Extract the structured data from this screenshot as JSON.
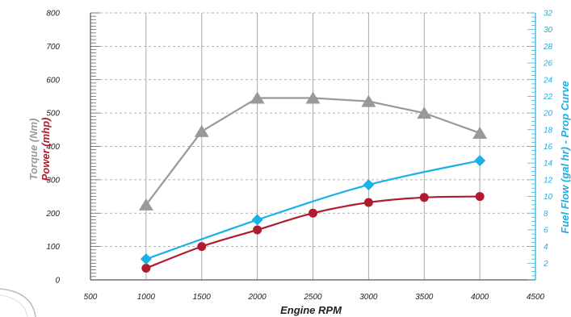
{
  "chart_data": {
    "type": "line",
    "title": "",
    "xlabel": "Engine RPM",
    "ylabel_left": [
      "Torque (Nm)",
      "Power (mhp)"
    ],
    "ylabel_right": "Fuel Flow (gal hr) - Prop Curve",
    "xlim": [
      500,
      4500
    ],
    "ylim_left": [
      0,
      800
    ],
    "ylim_right": [
      0,
      32
    ],
    "x_ticks": [
      500,
      1000,
      1500,
      2000,
      2500,
      3000,
      3500,
      4000,
      4500
    ],
    "y_left_ticks": [
      0,
      100,
      200,
      300,
      400,
      500,
      600,
      700,
      800
    ],
    "y_right_ticks": [
      2,
      4,
      6,
      8,
      10,
      12,
      14,
      16,
      18,
      20,
      22,
      24,
      26,
      28,
      30,
      32
    ],
    "grid": true,
    "series": [
      {
        "name": "Torque (Nm)",
        "axis": "left",
        "color": "#999999",
        "marker": "triangle",
        "x": [
          1000,
          1500,
          2000,
          2500,
          3000,
          3500,
          4000
        ],
        "values": [
          225,
          445,
          545,
          545,
          535,
          500,
          440
        ]
      },
      {
        "name": "Power (mhp)",
        "axis": "left",
        "color": "#b01c2e",
        "marker": "circle",
        "x": [
          1000,
          1500,
          2000,
          2500,
          3000,
          3500,
          4000
        ],
        "values": [
          35,
          100,
          150,
          200,
          232,
          247,
          250
        ]
      },
      {
        "name": "Fuel Flow (gal hr) - Prop Curve",
        "axis": "right",
        "color": "#1ab0e8",
        "marker": "diamond",
        "x": [
          1000,
          2000,
          3000,
          4000
        ],
        "values": [
          2.5,
          7.2,
          11.4,
          14.3
        ]
      }
    ]
  }
}
